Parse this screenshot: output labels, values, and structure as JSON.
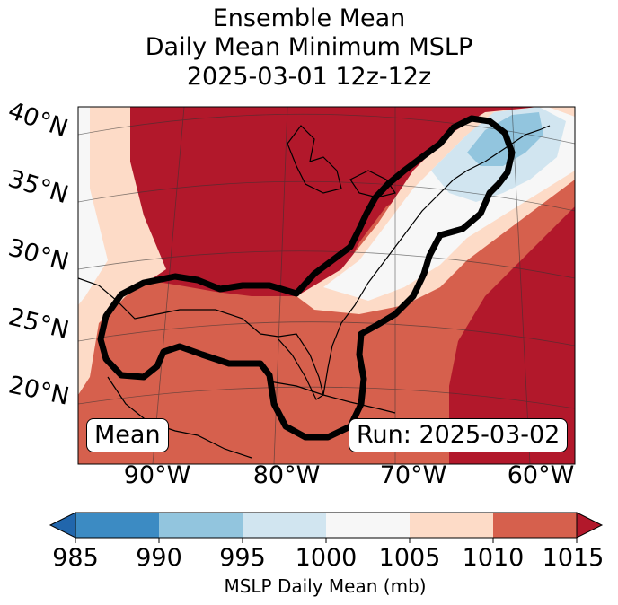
{
  "title": {
    "line1": "Ensemble Mean",
    "line2": "Daily Mean Minimum MSLP",
    "line3": "2025-03-01 12z-12z"
  },
  "map": {
    "lat_labels": [
      "40°N",
      "35°N",
      "30°N",
      "25°N",
      "20°N"
    ],
    "lon_labels": [
      "90°W",
      "80°W",
      "70°W",
      "60°W"
    ],
    "left_box": "Mean",
    "right_box": "Run: 2025-03-02",
    "colors": {
      "c985": "#2b6db2",
      "c990": "#3c8bc3",
      "c995": "#92c5de",
      "c1000": "#d1e5f0",
      "c1005": "#f7f7f7",
      "c1010": "#fddbc7",
      "c1015": "#d6604d",
      "cover": "#b2182b"
    }
  },
  "colorbar": {
    "ticks": [
      "985",
      "990",
      "995",
      "1000",
      "1005",
      "1010",
      "1015"
    ],
    "label": "MSLP Daily Mean (mb)"
  }
}
